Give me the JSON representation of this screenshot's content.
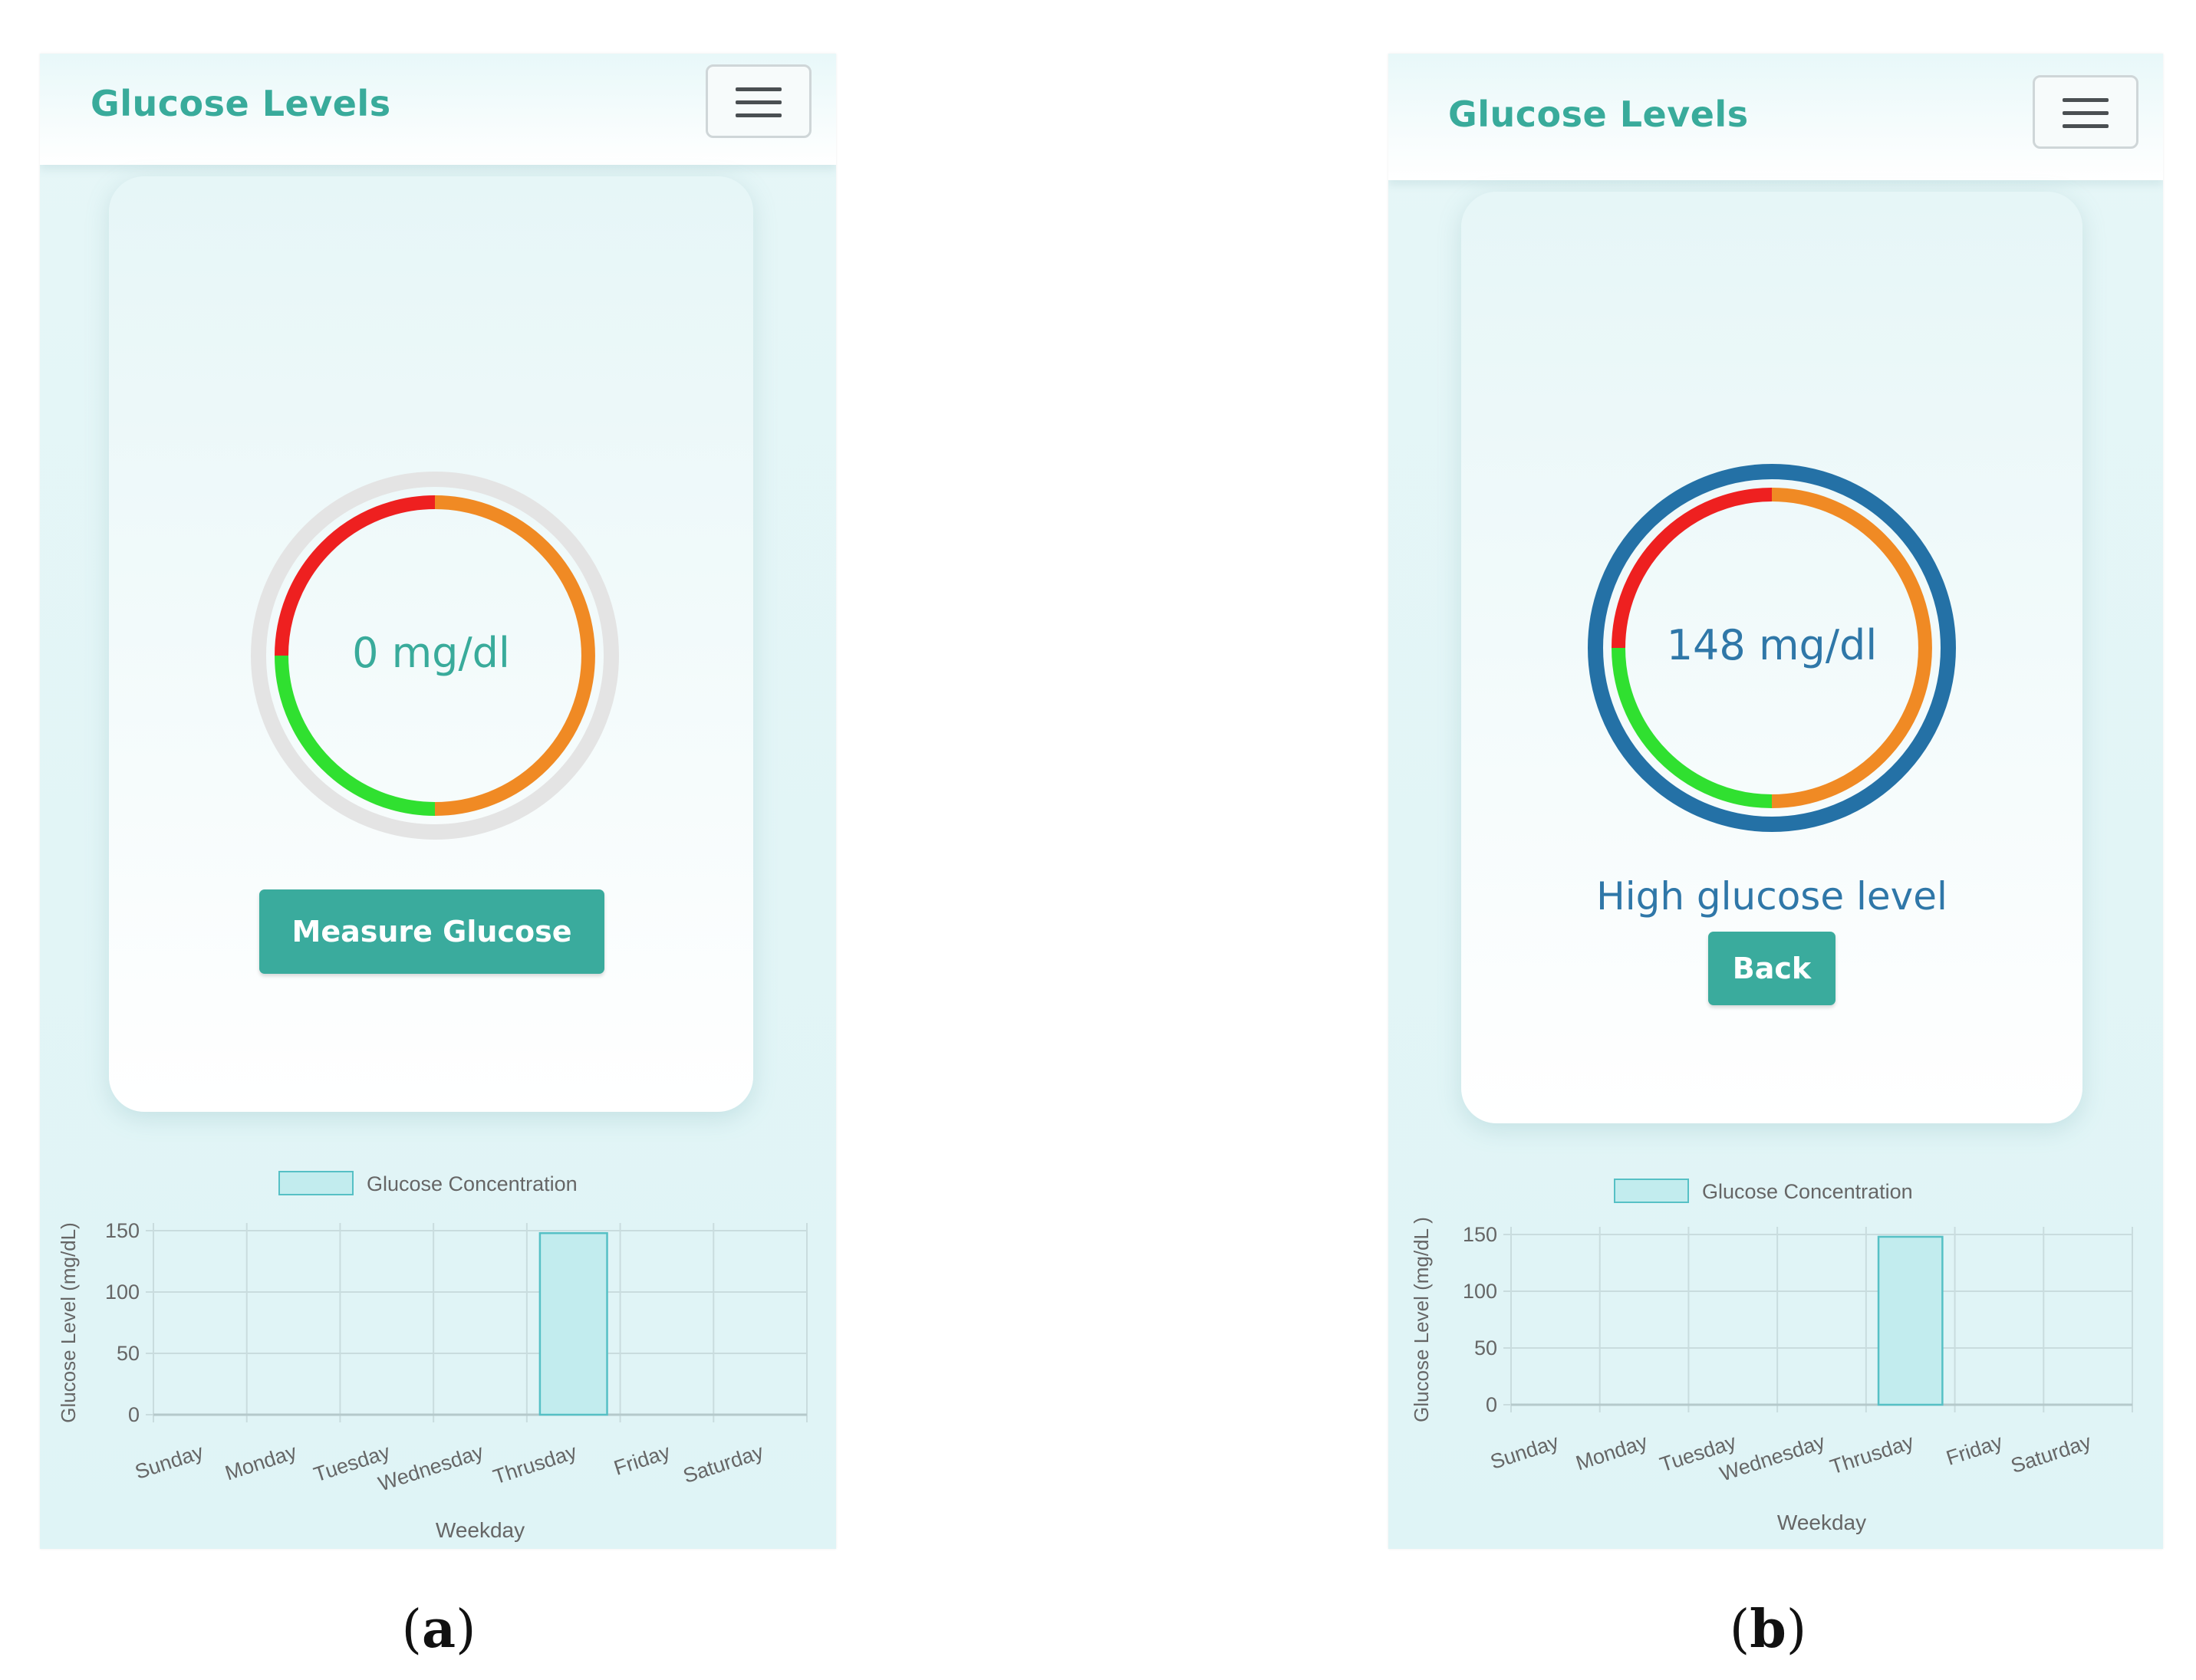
{
  "panels": [
    {
      "id": "a",
      "nav": {
        "title": "Glucose Levels"
      },
      "gauge": {
        "value_text": "0 mg/dl",
        "outer_ring_color": "#e4e4e4"
      },
      "status_text": "",
      "button_label": "Measure Glucose",
      "caption": "a"
    },
    {
      "id": "b",
      "nav": {
        "title": "Glucose Levels"
      },
      "gauge": {
        "value_text": "148 mg/dl",
        "outer_ring_color": "#2471a6"
      },
      "status_text": "High glucose level",
      "button_label": "Back",
      "caption": "b"
    }
  ],
  "gauge_segments": [
    {
      "name": "red",
      "color": "#ee2020",
      "from_deg": 180,
      "to_deg": 270
    },
    {
      "name": "orange",
      "color": "#f08a24",
      "from_deg": 270,
      "to_deg": 450
    },
    {
      "name": "green",
      "color": "#30e030",
      "from_deg": 90,
      "to_deg": 180
    }
  ],
  "chart_data": [
    {
      "type": "bar",
      "panel": "a",
      "categories": [
        "Sunday",
        "Monday",
        "Tuesday",
        "Wednesday",
        "Thrusday",
        "Friday",
        "Saturday"
      ],
      "series": [
        {
          "name": "Glucose Concentration",
          "values": [
            0,
            0,
            0,
            0,
            148,
            0,
            0
          ]
        }
      ],
      "xlabel": "Weekday",
      "ylabel": "Glucose Level (mg/dL)",
      "ylim": [
        0,
        150
      ],
      "yticks": [
        0,
        50,
        100,
        150
      ],
      "legend": "top-center",
      "grid": true,
      "bar_fill": "#c2ecee",
      "bar_stroke": "#56c0c5"
    },
    {
      "type": "bar",
      "panel": "b",
      "categories": [
        "Sunday",
        "Monday",
        "Tuesday",
        "Wednesday",
        "Thrusday",
        "Friday",
        "Saturday"
      ],
      "series": [
        {
          "name": "Glucose Concentration",
          "values": [
            0,
            0,
            0,
            0,
            148,
            0,
            0
          ]
        }
      ],
      "xlabel": "Weekday",
      "ylabel": "Glucose Level (mg/dL )",
      "ylim": [
        0,
        150
      ],
      "yticks": [
        0,
        50,
        100,
        150
      ],
      "legend": "top-center",
      "grid": true,
      "bar_fill": "#c2ecee",
      "bar_stroke": "#56c0c5"
    }
  ]
}
